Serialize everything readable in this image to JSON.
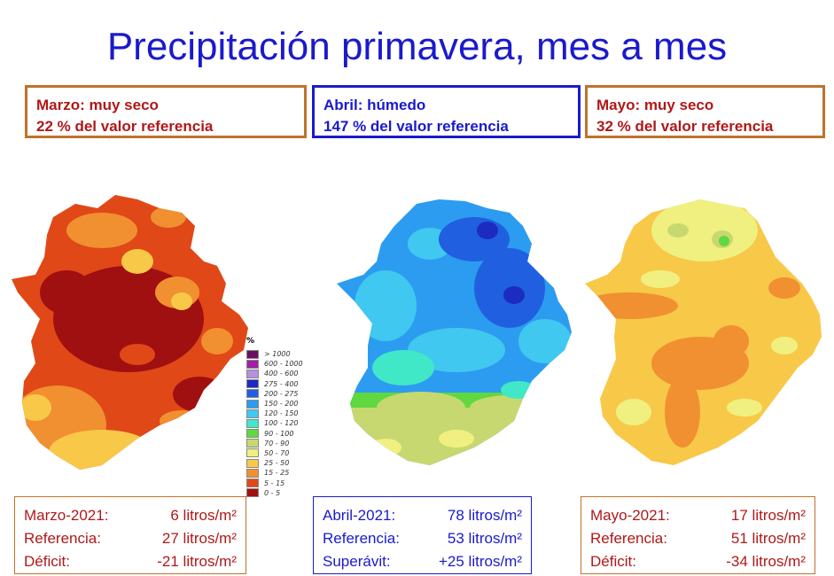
{
  "title": "Precipitación primavera, mes a mes",
  "months": [
    {
      "heading": "Marzo: muy seco",
      "percent_text": "22 % del valor referencia"
    },
    {
      "heading": "Abril: húmedo",
      "percent_text": "147 % del valor referencia"
    },
    {
      "heading": "Mayo: muy seco",
      "percent_text": "32 % del valor referencia"
    }
  ],
  "summaries": [
    {
      "rows": [
        {
          "label": "Marzo-2021:",
          "value": "6 litros/m²"
        },
        {
          "label": "Referencia:",
          "value": "27 litros/m²"
        },
        {
          "label": "Déficit:",
          "value": "-21 litros/m²"
        }
      ]
    },
    {
      "rows": [
        {
          "label": "Abril-2021:",
          "value": "78 litros/m²"
        },
        {
          "label": "Referencia:",
          "value": "53 litros/m²"
        },
        {
          "label": "Superávit:",
          "value": "+25 litros/m²"
        }
      ]
    },
    {
      "rows": [
        {
          "label": "Mayo-2021:",
          "value": "17 litros/m²"
        },
        {
          "label": "Referencia:",
          "value": "51 litros/m²"
        },
        {
          "label": "Déficit:",
          "value": "-34 litros/m²"
        }
      ]
    }
  ],
  "legend": {
    "unit": "%",
    "items": [
      {
        "label": "> 1000",
        "color": "#6a1060"
      },
      {
        "label": "600 - 1000",
        "color": "#a020a8"
      },
      {
        "label": "400 - 600",
        "color": "#b890e0"
      },
      {
        "label": "275 - 400",
        "color": "#1c2cc0"
      },
      {
        "label": "200 - 275",
        "color": "#2060e0"
      },
      {
        "label": "150 - 200",
        "color": "#2c9cf0"
      },
      {
        "label": "120 - 150",
        "color": "#40c8f0"
      },
      {
        "label": "100 - 120",
        "color": "#40e8c8"
      },
      {
        "label": "90 - 100",
        "color": "#60d840"
      },
      {
        "label": "70 - 90",
        "color": "#c8d870"
      },
      {
        "label": "50 - 70",
        "color": "#f0f080"
      },
      {
        "label": "25 - 50",
        "color": "#f8c848"
      },
      {
        "label": "15 - 25",
        "color": "#f09030"
      },
      {
        "label": "5 - 15",
        "color": "#e04818"
      },
      {
        "label": "0 - 5",
        "color": "#a01010"
      }
    ]
  }
}
